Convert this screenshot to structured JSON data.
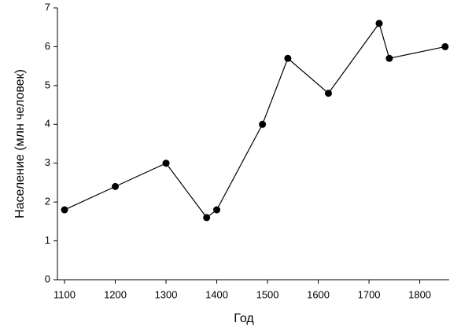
{
  "chart_data": {
    "type": "line",
    "x_label": "Год",
    "y_label": "Население (млн человек)",
    "x": [
      1100,
      1200,
      1300,
      1380,
      1400,
      1490,
      1540,
      1620,
      1720,
      1740,
      1850
    ],
    "series": [
      {
        "color": "#000000",
        "values": [
          1.8,
          2.4,
          3.0,
          1.6,
          1.8,
          4.0,
          5.7,
          4.8,
          6.6,
          5.7,
          6.0
        ]
      }
    ],
    "xlim": [
      1086,
      1858
    ],
    "ylim": [
      0,
      7
    ],
    "xticks": [
      1100,
      1200,
      1300,
      1400,
      1500,
      1600,
      1700,
      1800
    ],
    "yticks": [
      0,
      1,
      2,
      3,
      4,
      5,
      6,
      7
    ],
    "grid": false
  }
}
